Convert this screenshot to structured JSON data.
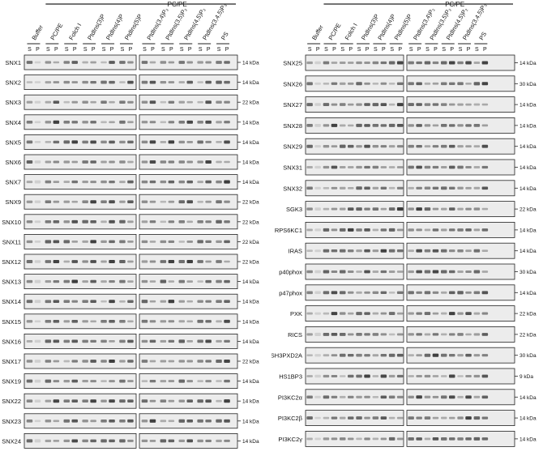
{
  "header_label": "PC/PE",
  "sp_labels": [
    "S",
    "P"
  ],
  "lanes": [
    "Buffer",
    "PC/PE",
    "Folch I",
    "PtdIns(3)P",
    "PtdIns(4)P",
    "PtdIns(5)P",
    "PtdIns(3,4)P₂",
    "PtdIns(3,5)P₂",
    "PtdIns(4,5)P₂",
    "PtdIns(3,4,5)P₃",
    "PS"
  ],
  "left_panel": {
    "rows": [
      {
        "name": "SNX1",
        "kda": "14 kDa"
      },
      {
        "name": "SNX2",
        "kda": "14 kDa"
      },
      {
        "name": "SNX3",
        "kda": "22 kDa"
      },
      {
        "name": "SNX4",
        "kda": "14 kDa"
      },
      {
        "name": "SNX5",
        "kda": "14 kDa"
      },
      {
        "name": "SNX6",
        "kda": "14 kDa"
      },
      {
        "name": "SNX7",
        "kda": "14 kDa"
      },
      {
        "name": "SNX9",
        "kda": "22 kDa"
      },
      {
        "name": "SNX10",
        "kda": "22 kDa"
      },
      {
        "name": "SNX11",
        "kda": "22 kDa"
      },
      {
        "name": "SNX12",
        "kda": "22 kDa"
      },
      {
        "name": "SNX13",
        "kda": "14 kDa"
      },
      {
        "name": "SNX14",
        "kda": "14 kDa"
      },
      {
        "name": "SNX15",
        "kda": "14 kDa"
      },
      {
        "name": "SNX16",
        "kda": "14 kDa"
      },
      {
        "name": "SNX17",
        "kda": "22 kDa"
      },
      {
        "name": "SNX19",
        "kda": "14 kDa"
      },
      {
        "name": "SNX22",
        "kda": "14 kDa"
      },
      {
        "name": "SNX23",
        "kda": "14 kDa"
      },
      {
        "name": "SNX24",
        "kda": "14 kDa"
      }
    ]
  },
  "right_panel": {
    "rows": [
      {
        "name": "SNX25",
        "kda": "14 kDa"
      },
      {
        "name": "SNX26",
        "kda": "30 kDa"
      },
      {
        "name": "SNX27",
        "kda": "14 kDa"
      },
      {
        "name": "SNX28",
        "kda": "14 kDa"
      },
      {
        "name": "SNX29",
        "kda": "14 kDa"
      },
      {
        "name": "SNX31",
        "kda": "14 kDa"
      },
      {
        "name": "SNX32",
        "kda": "14 kDa"
      },
      {
        "name": "SGK3",
        "kda": "22 kDa"
      },
      {
        "name": "RPS6KC1",
        "kda": "14 kDa"
      },
      {
        "name": "IRAS",
        "kda": "14 kDa"
      },
      {
        "name": "p40phox",
        "kda": "30 kDa"
      },
      {
        "name": "p47phox",
        "kda": "14 kDa"
      },
      {
        "name": "PXK",
        "kda": "22 kDa"
      },
      {
        "name": "RICS",
        "kda": "22 kDa"
      },
      {
        "name": "*SH3PXD2A",
        "kda": "30 kDa"
      },
      {
        "name": "HS1BP3",
        "kda": "9 kDa"
      },
      {
        "name": "PI3KC2α",
        "kda": "14 kDa"
      },
      {
        "name": "PI3KC2β",
        "kda": "14 kDa"
      },
      {
        "name": "PI3KC2γ",
        "kda": "14 kDa"
      }
    ]
  },
  "colors": {
    "band": "#333333",
    "blot_bg": "#ececec",
    "frame": "#222222"
  }
}
